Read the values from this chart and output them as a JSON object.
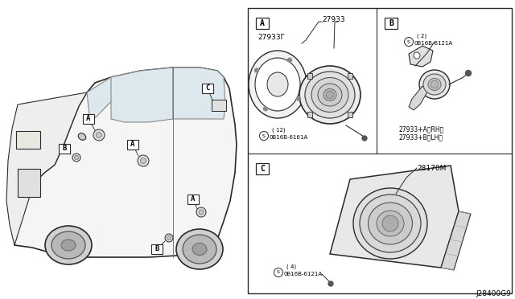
{
  "bg_color": "#ffffff",
  "diagram_id": "J28400G9",
  "panel_A_label": "A",
  "panel_B_label": "B",
  "panel_C_label": "C",
  "part_27933": "27933",
  "part_27933F": "27933Γ",
  "part_27933_RH": "27933+A（RH）",
  "part_27933_LH": "27933+B（LH）",
  "part_28170M": "28170M",
  "screw_A_line1": "©0B16B-6161A",
  "screw_A_line2": "( 12)",
  "screw_B_line1": "©0B16B-6121A",
  "screw_B_line2": "( 2)",
  "screw_C_line1": "©0B16B-6121A",
  "screw_C_line2": "( 4)"
}
